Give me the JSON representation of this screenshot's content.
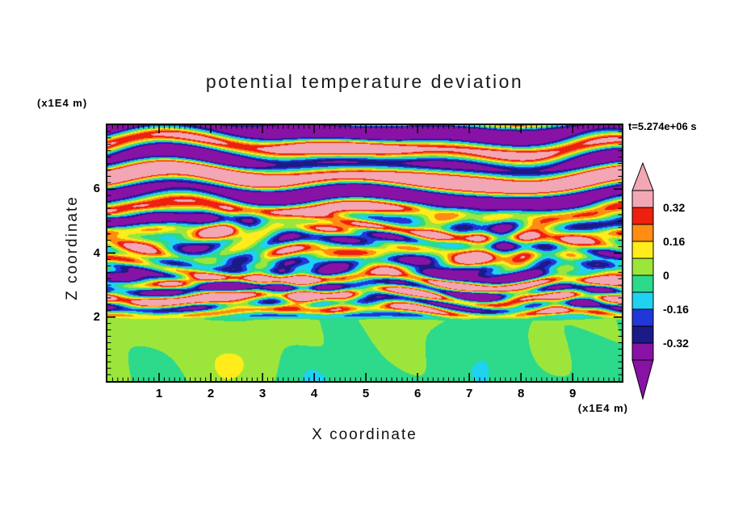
{
  "title": "potential temperature deviation",
  "timestamp": "t=5.274e+06 s",
  "axes": {
    "x": {
      "label": "X coordinate",
      "unit": "(x1E4 m)",
      "major_ticks": [
        1,
        2,
        3,
        4,
        5,
        6,
        7,
        8,
        9
      ],
      "minor_step": 0.1
    },
    "z": {
      "label": "Z coordinate",
      "unit": "(x1E4 m)",
      "major_ticks": [
        2,
        4,
        6
      ],
      "minor_step": 0.2
    }
  },
  "colorbar": {
    "labels": [
      "0.32",
      "0.16",
      "0",
      "-0.16",
      "-0.32"
    ],
    "segment_colors": [
      "#f3a7b4",
      "#ee2010",
      "#ff8d12",
      "#ffec1a",
      "#9ce63c",
      "#2dd98a",
      "#1fd2f2",
      "#2237d8",
      "#1c1a86",
      "#8812a6"
    ],
    "arrow_top_color": "#f3a7b4",
    "arrow_bottom_color": "#8812a6"
  },
  "chart_data": {
    "type": "heatmap",
    "title": "potential temperature deviation",
    "xlabel": "X coordinate",
    "ylabel": "Z coordinate",
    "axis_units": "(x1E4 m)",
    "time_annotation": "t=5.274e+06 s",
    "x_axis": {
      "range": [
        0,
        9.95
      ],
      "ticks": [
        1,
        2,
        3,
        4,
        5,
        6,
        7,
        8,
        9
      ]
    },
    "z_axis": {
      "range": [
        0,
        8.0
      ],
      "ticks": [
        2,
        4,
        6
      ]
    },
    "colorbar_tick_values": [
      0.32,
      0.16,
      0,
      -0.16,
      -0.32
    ],
    "level_edges": [
      0.4,
      0.32,
      0.24,
      0.16,
      0.08,
      0,
      -0.08,
      -0.16,
      -0.24,
      -0.32,
      -0.4
    ],
    "palette_top_to_bottom": [
      "pink",
      "red",
      "orange",
      "yellow",
      "yellow-green",
      "green",
      "cyan",
      "blue",
      "navy",
      "purple"
    ],
    "field_structure": {
      "upper_region": "z > ~5 (x1E4 m): strongly stratified horizontal wave bands alternating strong positive deviation (pink, > 0.32) and strong negative deviation (purple, < -0.32)",
      "middle_region": "~2 < z < ~5: turbulent thin filaments cycling through all contour levels (navy/cyan/green/yellow/orange/red) over a green-cyan background; dense fine stripes near z = 2-3",
      "lower_region": "z < ~2: weakly perturbed boundary region with values near 0, smooth blobs of the two green shades (-0.08..0 and 0..0.08)"
    }
  }
}
